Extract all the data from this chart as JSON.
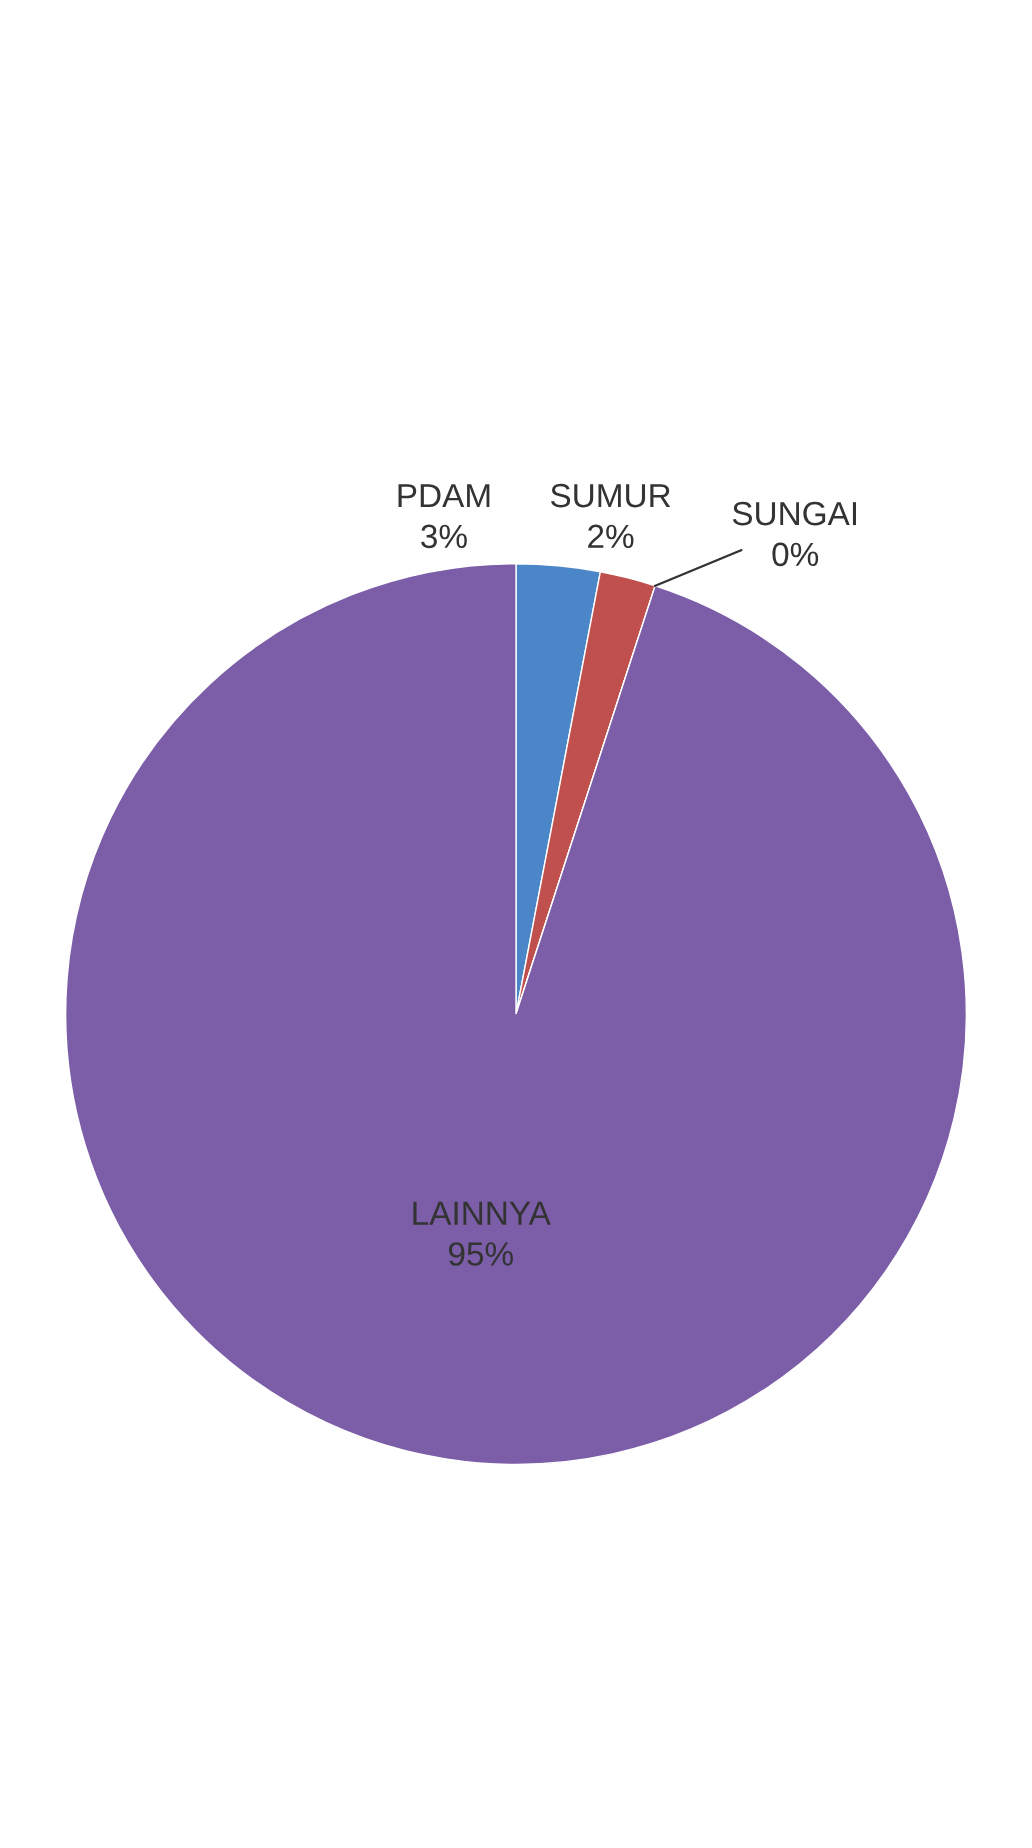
{
  "chart_data": {
    "type": "pie",
    "categories": [
      "PDAM",
      "SUMUR",
      "SUNGAI",
      "LAINNYA"
    ],
    "values": [
      3,
      2,
      0,
      95
    ],
    "value_labels": [
      "3%",
      "2%",
      "0%",
      "95%"
    ],
    "colors": [
      "#4a86c8",
      "#c0504d",
      "#7f9f3f",
      "#7b5ea7"
    ],
    "legend": false
  }
}
